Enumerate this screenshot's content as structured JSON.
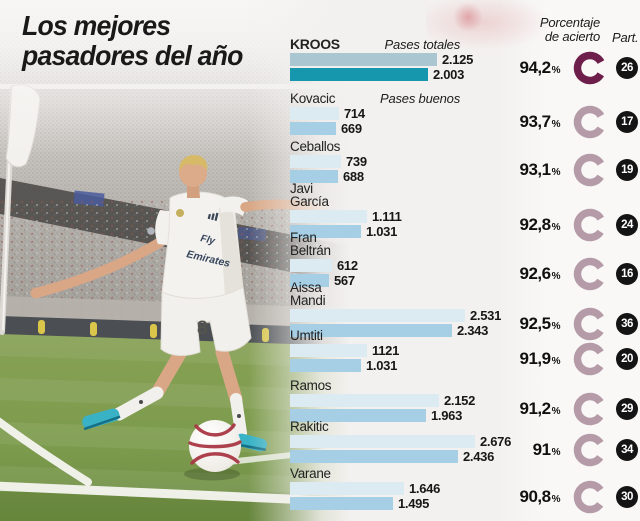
{
  "title": {
    "line1": "Los mejores",
    "line2": "pasadores del año"
  },
  "column_headers": {
    "accuracy_line1": "Porcentaje",
    "accuracy_line2": "de acierto",
    "participation": "Part."
  },
  "series_labels": {
    "totales": "Pases totales",
    "buenos": "Pases buenos"
  },
  "labels": {
    "percent_sign": "%"
  },
  "colors": {
    "bar_total": "#dcebf2",
    "bar_good": "#a6cfe5",
    "bar_total_highlight": "#a9c6d1",
    "bar_good_highlight": "#1697ad",
    "ring": "#b59ba7",
    "ring_highlight": "#6e1e4b",
    "badge": "#141414",
    "text": "#1b1b1b"
  },
  "players": [
    {
      "name_lines": [
        "KROOS"
      ],
      "highlight": true,
      "total": 2125,
      "total_display": "2.125",
      "good": 2003,
      "good_display": "2.003",
      "accuracy": 94.2,
      "accuracy_display": "94,2",
      "participation": "26"
    },
    {
      "name_lines": [
        "Kovacic"
      ],
      "highlight": false,
      "total": 714,
      "total_display": "714",
      "good": 669,
      "good_display": "669",
      "accuracy": 93.7,
      "accuracy_display": "93,7",
      "participation": "17"
    },
    {
      "name_lines": [
        "Ceballos"
      ],
      "highlight": false,
      "total": 739,
      "total_display": "739",
      "good": 688,
      "good_display": "688",
      "accuracy": 93.1,
      "accuracy_display": "93,1",
      "participation": "19"
    },
    {
      "name_lines": [
        "Javi",
        "García"
      ],
      "highlight": false,
      "total": 1111,
      "total_display": "1.111",
      "good": 1031,
      "good_display": "1.031",
      "accuracy": 92.8,
      "accuracy_display": "92,8",
      "participation": "24"
    },
    {
      "name_lines": [
        "Fran",
        "Beltrán"
      ],
      "highlight": false,
      "total": 612,
      "total_display": "612",
      "good": 567,
      "good_display": "567",
      "accuracy": 92.6,
      "accuracy_display": "92,6",
      "participation": "16"
    },
    {
      "name_lines": [
        "Aissa",
        "Mandi"
      ],
      "highlight": false,
      "total": 2531,
      "total_display": "2.531",
      "good": 2343,
      "good_display": "2.343",
      "accuracy": 92.5,
      "accuracy_display": "92,5",
      "participation": "36"
    },
    {
      "name_lines": [
        "Umtiti"
      ],
      "highlight": false,
      "total": 1121,
      "total_display": "1121",
      "good": 1031,
      "good_display": "1.031",
      "accuracy": 91.9,
      "accuracy_display": "91,9",
      "participation": "20"
    },
    {
      "name_lines": [
        "Ramos"
      ],
      "highlight": false,
      "total": 2152,
      "total_display": "2.152",
      "good": 1963,
      "good_display": "1.963",
      "accuracy": 91.2,
      "accuracy_display": "91,2",
      "participation": "29"
    },
    {
      "name_lines": [
        "Rakitic"
      ],
      "highlight": false,
      "total": 2676,
      "total_display": "2.676",
      "good": 2436,
      "good_display": "2.436",
      "accuracy": 91,
      "accuracy_display": "91",
      "participation": "34"
    },
    {
      "name_lines": [
        "Varane"
      ],
      "highlight": false,
      "total": 1646,
      "total_display": "1.646",
      "good": 1495,
      "good_display": "1.495",
      "accuracy": 90.8,
      "accuracy_display": "90,8",
      "participation": "30"
    }
  ],
  "chart_data": {
    "type": "bar",
    "orientation": "horizontal",
    "title": "Los mejores pasadores del año",
    "categories": [
      "Kroos",
      "Kovacic",
      "Ceballos",
      "Javi García",
      "Fran Beltrán",
      "Aissa Mandi",
      "Umtiti",
      "Ramos",
      "Rakitic",
      "Varane"
    ],
    "series": [
      {
        "name": "Pases totales",
        "values": [
          2125,
          714,
          739,
          1111,
          612,
          2531,
          1121,
          2152,
          2676,
          1646
        ]
      },
      {
        "name": "Pases buenos",
        "values": [
          2003,
          669,
          688,
          1031,
          567,
          2343,
          1031,
          1963,
          2436,
          1495
        ]
      }
    ],
    "accuracy_pct": [
      94.2,
      93.7,
      93.1,
      92.8,
      92.6,
      92.5,
      91.9,
      91.2,
      91,
      90.8
    ],
    "participation": [
      26,
      17,
      19,
      24,
      16,
      36,
      20,
      29,
      34,
      30
    ],
    "xlim": [
      0,
      2700
    ],
    "value_labels": true,
    "grid": false,
    "legend_position": "inline-first-two-rows"
  }
}
